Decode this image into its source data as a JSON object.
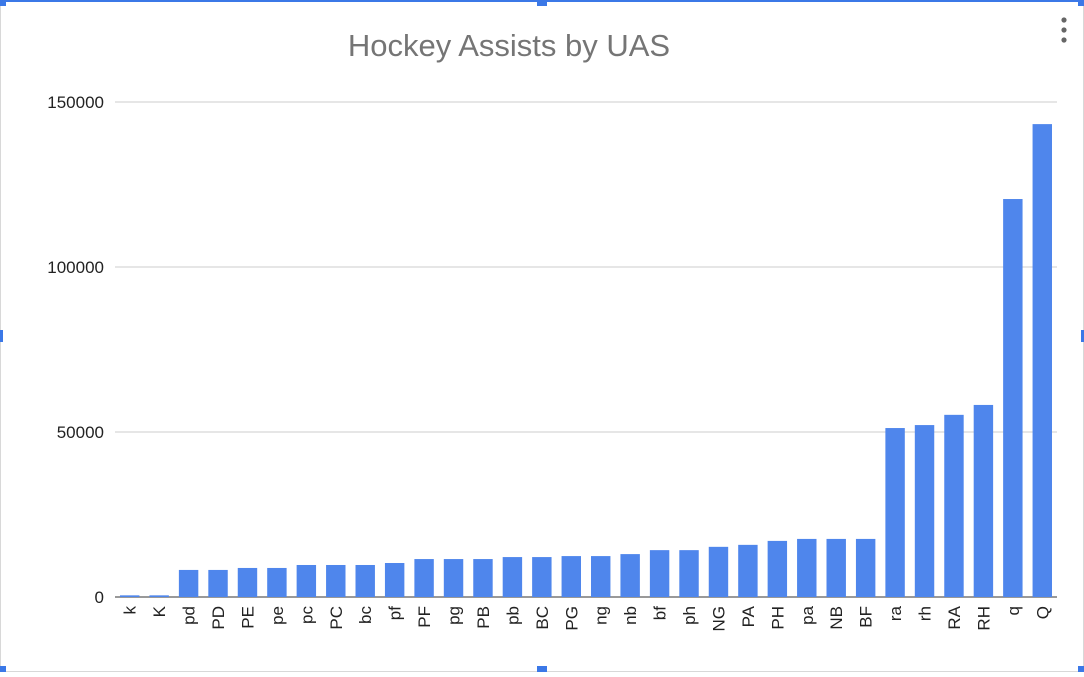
{
  "chart_data": {
    "type": "bar",
    "title": "Hockey Assists by UAS",
    "categories": [
      "k",
      "K",
      "pd",
      "PD",
      "PE",
      "pe",
      "pc",
      "PC",
      "bc",
      "pf",
      "PF",
      "pg",
      "PB",
      "pb",
      "BC",
      "PG",
      "ng",
      "nb",
      "bf",
      "ph",
      "NG",
      "PA",
      "PH",
      "pa",
      "NB",
      "BF",
      "ra",
      "rh",
      "RA",
      "RH",
      "q",
      "Q"
    ],
    "values": [
      500,
      500,
      8200,
      8200,
      8800,
      8800,
      9700,
      9700,
      9700,
      10300,
      11500,
      11500,
      11500,
      12100,
      12100,
      12400,
      12400,
      13000,
      14200,
      14200,
      15200,
      15800,
      17000,
      17600,
      17600,
      17600,
      51200,
      52100,
      55200,
      58200,
      120600,
      143300
    ],
    "color": "#4f86ec",
    "ylim": [
      0,
      150000
    ],
    "yticks": [
      0,
      50000,
      100000,
      150000
    ],
    "grid": true
  }
}
